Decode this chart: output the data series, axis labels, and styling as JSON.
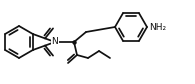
{
  "bg_color": "#ffffff",
  "line_color": "#111111",
  "lw": 1.25,
  "figsize": [
    1.95,
    0.84
  ],
  "dpi": 100
}
